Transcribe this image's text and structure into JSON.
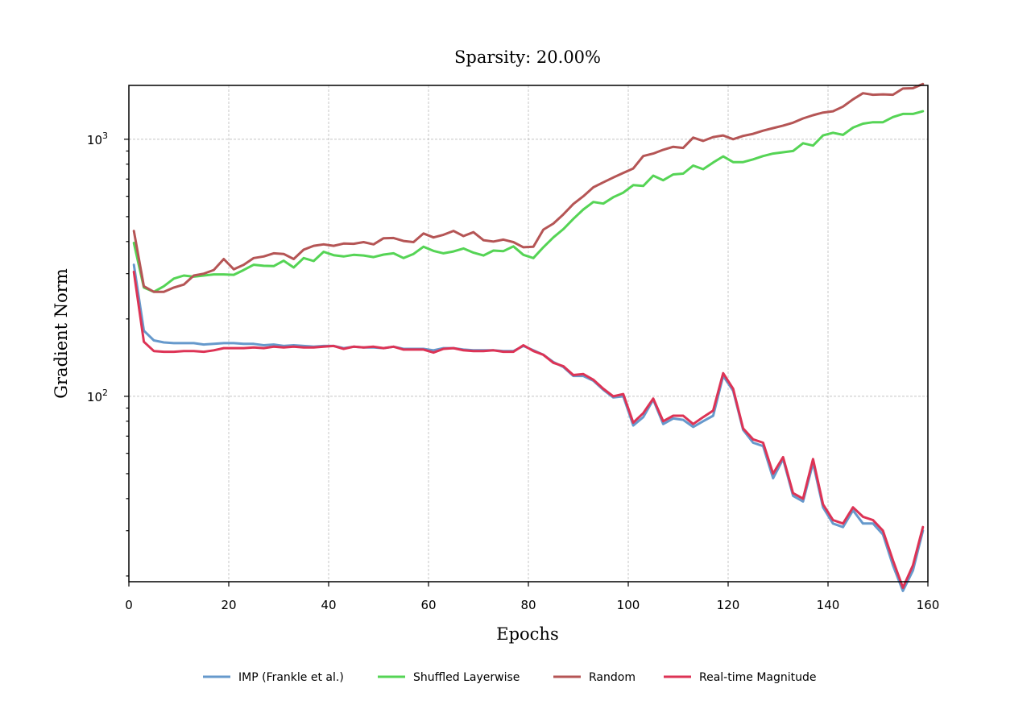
{
  "chart_data": {
    "type": "line",
    "title": "Sparsity: 20.00%",
    "xlabel": "Epochs",
    "ylabel": "Gradient Norm",
    "xlim": [
      0,
      160
    ],
    "ylim": [
      19,
      1620
    ],
    "yscale": "log",
    "grid": true,
    "legend_position": "bottom-center",
    "x_ticks": [
      "0",
      "20",
      "40",
      "60",
      "80",
      "100",
      "120",
      "140",
      "160"
    ],
    "y_ticks": [
      {
        "value": 100,
        "base": "10",
        "exp": "2"
      },
      {
        "value": 1000,
        "base": "10",
        "exp": "3"
      }
    ],
    "x": [
      1,
      3,
      5,
      7,
      9,
      11,
      13,
      15,
      17,
      19,
      21,
      23,
      25,
      27,
      29,
      31,
      33,
      35,
      37,
      39,
      41,
      43,
      45,
      47,
      49,
      51,
      53,
      55,
      57,
      59,
      61,
      63,
      65,
      67,
      69,
      71,
      73,
      75,
      77,
      79,
      81,
      83,
      85,
      87,
      89,
      91,
      93,
      95,
      97,
      99,
      101,
      103,
      105,
      107,
      109,
      111,
      113,
      115,
      117,
      119,
      121,
      123,
      125,
      127,
      129,
      131,
      133,
      135,
      137,
      139,
      141,
      143,
      145,
      147,
      149,
      151,
      153,
      155,
      157,
      159
    ],
    "series": [
      {
        "name": "IMP (Frankle et al.)",
        "color": "#6699cc",
        "values": [
          325,
          180,
          165,
          162,
          161,
          161,
          161,
          159,
          160,
          161,
          161,
          160,
          160,
          158,
          159,
          157,
          158,
          157,
          156,
          157,
          157,
          154,
          156,
          155,
          155,
          154,
          156,
          153,
          153,
          153,
          151,
          154,
          154,
          152,
          151,
          151,
          151,
          150,
          150,
          157,
          151,
          145,
          136,
          130,
          120,
          120,
          115,
          106,
          99,
          100,
          77,
          83,
          97,
          78,
          82,
          81,
          76,
          80,
          84,
          120,
          105,
          74,
          66,
          64,
          48,
          57,
          41,
          39,
          55,
          37,
          32,
          31,
          36,
          32,
          32,
          29,
          22,
          17.5,
          21,
          30
        ]
      },
      {
        "name": "Shuffled Layerwise",
        "color": "#55d455",
        "values": [
          395,
          265,
          255,
          268,
          287,
          295,
          292,
          295,
          298,
          298,
          297,
          310,
          325,
          322,
          321,
          337,
          317,
          345,
          336,
          365,
          354,
          350,
          355,
          353,
          348,
          356,
          360,
          345,
          358,
          382,
          368,
          360,
          366,
          376,
          362,
          353,
          369,
          367,
          383,
          355,
          345,
          380,
          415,
          447,
          490,
          533,
          570,
          562,
          595,
          620,
          663,
          658,
          722,
          693,
          730,
          735,
          790,
          765,
          812,
          858,
          815,
          815,
          835,
          860,
          880,
          890,
          900,
          965,
          945,
          1035,
          1060,
          1040,
          1110,
          1150,
          1165,
          1165,
          1220,
          1255,
          1255,
          1285
        ]
      },
      {
        "name": "Random",
        "color": "#b55555",
        "values": [
          440,
          268,
          255,
          255,
          265,
          272,
          295,
          300,
          310,
          342,
          312,
          325,
          345,
          350,
          360,
          358,
          342,
          372,
          385,
          390,
          385,
          393,
          392,
          398,
          390,
          412,
          413,
          402,
          398,
          430,
          415,
          425,
          440,
          420,
          435,
          405,
          400,
          407,
          398,
          380,
          382,
          445,
          470,
          510,
          560,
          600,
          650,
          680,
          710,
          740,
          770,
          860,
          880,
          910,
          935,
          925,
          1015,
          985,
          1020,
          1035,
          1000,
          1030,
          1050,
          1080,
          1105,
          1130,
          1160,
          1205,
          1240,
          1270,
          1285,
          1340,
          1430,
          1510,
          1490,
          1495,
          1490,
          1575,
          1580,
          1640
        ]
      },
      {
        "name": "Real-time Magnitude",
        "color": "#dd3355",
        "values": [
          305,
          163,
          150,
          149,
          149,
          150,
          150,
          149,
          151,
          154,
          154,
          154,
          155,
          154,
          156,
          155,
          156,
          155,
          155,
          156,
          157,
          153,
          156,
          155,
          156,
          154,
          156,
          152,
          152,
          152,
          148,
          153,
          154,
          151,
          150,
          150,
          151,
          149,
          149,
          158,
          150,
          145,
          135,
          131,
          121,
          122,
          116,
          107,
          100,
          102,
          79,
          86,
          98,
          80,
          84,
          84,
          78,
          83,
          88,
          123,
          107,
          75,
          68,
          66,
          50,
          58,
          42,
          40,
          57,
          38,
          33,
          32,
          37,
          34,
          33,
          30,
          23,
          18,
          22,
          31
        ]
      }
    ]
  }
}
